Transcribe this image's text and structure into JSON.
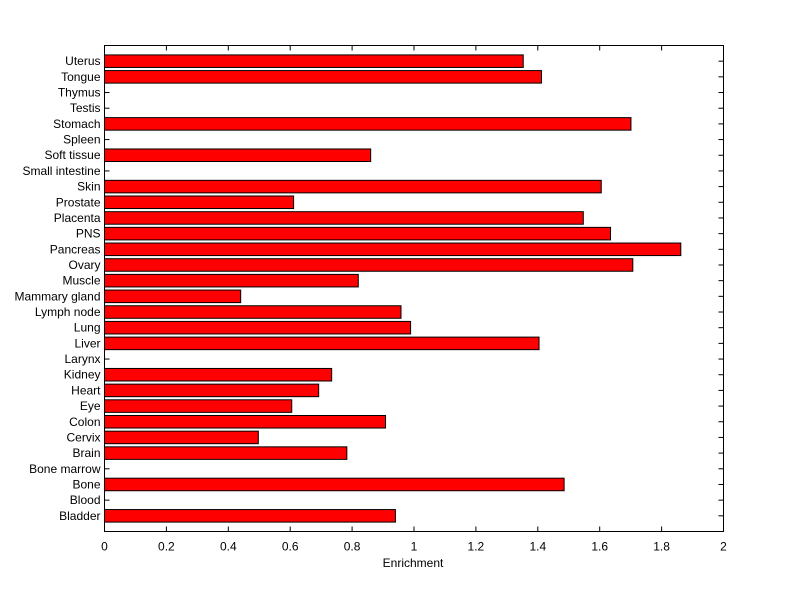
{
  "chart_data": {
    "type": "bar",
    "orientation": "horizontal",
    "title": "",
    "xlabel": "Enrichment",
    "ylabel": "",
    "xlim": [
      0,
      2
    ],
    "xticks": [
      "0",
      "0.2",
      "0.4",
      "0.6",
      "0.8",
      "1",
      "1.2",
      "1.4",
      "1.6",
      "1.8",
      "2"
    ],
    "categories": [
      "Bladder",
      "Blood",
      "Bone",
      "Bone marrow",
      "Brain",
      "Cervix",
      "Colon",
      "Eye",
      "Heart",
      "Kidney",
      "Larynx",
      "Liver",
      "Lung",
      "Lymph node",
      "Mammary gland",
      "Muscle",
      "Ovary",
      "Pancreas",
      "PNS",
      "Placenta",
      "Prostate",
      "Skin",
      "Small intestine",
      "Soft tissue",
      "Spleen",
      "Stomach",
      "Testis",
      "Thymus",
      "Tongue",
      "Uterus"
    ],
    "values": [
      0.94,
      0,
      1.485,
      0,
      0.783,
      0.497,
      0.908,
      0.605,
      0.692,
      0.734,
      0,
      1.404,
      0.989,
      0.958,
      0.44,
      0.82,
      1.707,
      1.862,
      1.635,
      1.547,
      0.611,
      1.605,
      0,
      0.86,
      0,
      1.701,
      0,
      0,
      1.412,
      1.353
    ],
    "bar_color": "#ff0000",
    "edge_color": "#000000",
    "grid": false,
    "legend": "none"
  }
}
